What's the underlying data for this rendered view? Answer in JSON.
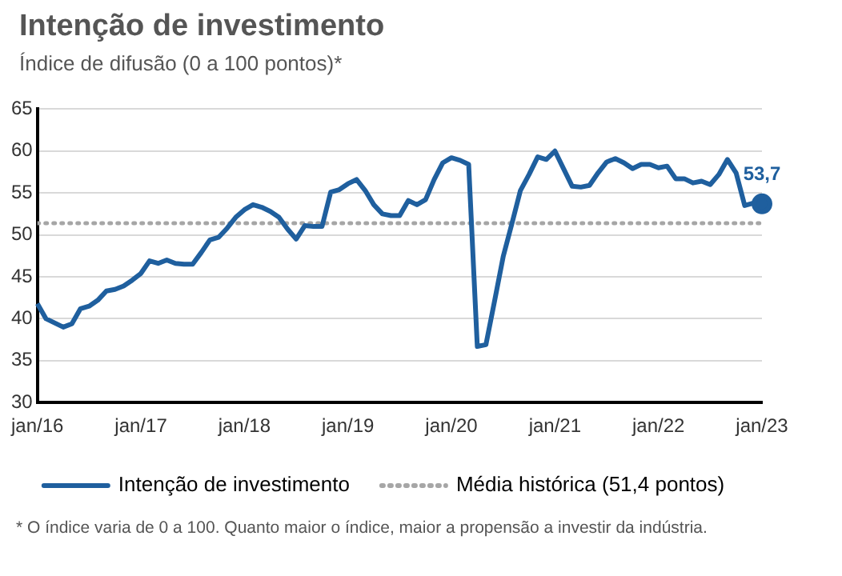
{
  "chart_data": {
    "type": "line",
    "title": "Intenção de investimento",
    "subtitle": "Índice de difusão (0 a 100 pontos)*",
    "x": [
      "2016-01",
      "2016-02",
      "2016-03",
      "2016-04",
      "2016-05",
      "2016-06",
      "2016-07",
      "2016-08",
      "2016-09",
      "2016-10",
      "2016-11",
      "2016-12",
      "2017-01",
      "2017-02",
      "2017-03",
      "2017-04",
      "2017-05",
      "2017-06",
      "2017-07",
      "2017-08",
      "2017-09",
      "2017-10",
      "2017-11",
      "2017-12",
      "2018-01",
      "2018-02",
      "2018-03",
      "2018-04",
      "2018-05",
      "2018-06",
      "2018-07",
      "2018-08",
      "2018-09",
      "2018-10",
      "2018-11",
      "2018-12",
      "2019-01",
      "2019-02",
      "2019-03",
      "2019-04",
      "2019-05",
      "2019-06",
      "2019-07",
      "2019-08",
      "2019-09",
      "2019-10",
      "2019-11",
      "2019-12",
      "2020-01",
      "2020-02",
      "2020-03",
      "2020-04",
      "2020-05",
      "2020-06",
      "2020-07",
      "2020-08",
      "2020-09",
      "2020-10",
      "2020-11",
      "2020-12",
      "2021-01",
      "2021-02",
      "2021-03",
      "2021-04",
      "2021-05",
      "2021-06",
      "2021-07",
      "2021-08",
      "2021-09",
      "2021-10",
      "2021-11",
      "2021-12",
      "2022-01",
      "2022-02",
      "2022-03",
      "2022-04",
      "2022-05",
      "2022-06",
      "2022-07",
      "2022-08",
      "2022-09",
      "2022-10",
      "2022-11",
      "2022-12",
      "2023-01"
    ],
    "series": [
      {
        "name": "Intenção de investimento",
        "color": "#1f5f9e",
        "values": [
          41.8,
          40.0,
          39.5,
          39.0,
          39.4,
          41.2,
          41.5,
          42.2,
          43.3,
          43.5,
          43.9,
          44.6,
          45.4,
          46.9,
          46.6,
          47.0,
          46.6,
          46.5,
          46.5,
          47.9,
          49.4,
          49.7,
          50.8,
          52.1,
          53.0,
          53.6,
          53.3,
          52.8,
          52.1,
          50.7,
          49.5,
          51.1,
          51.0,
          51.0,
          55.1,
          55.4,
          56.1,
          56.6,
          55.3,
          53.6,
          52.5,
          52.3,
          52.3,
          54.1,
          53.6,
          54.2,
          56.6,
          58.6,
          59.2,
          58.9,
          58.4,
          36.7,
          36.9,
          42.1,
          47.4,
          51.3,
          55.3,
          57.2,
          59.3,
          59.0,
          60.0,
          57.9,
          55.8,
          55.7,
          55.9,
          57.4,
          58.7,
          59.1,
          58.6,
          57.9,
          58.4,
          58.4,
          58.0,
          58.2,
          56.7,
          56.7,
          56.2,
          56.4,
          56.0,
          57.2,
          59.0,
          57.4,
          53.5,
          53.8,
          53.7
        ],
        "value_labels": [
          null,
          null,
          null,
          null,
          null,
          null,
          null,
          null,
          null,
          null,
          null,
          null,
          null,
          null,
          null,
          null,
          null,
          null,
          null,
          null,
          null,
          null,
          null,
          null,
          null,
          null,
          null,
          null,
          null,
          null,
          null,
          null,
          null,
          null,
          null,
          null,
          null,
          null,
          null,
          null,
          null,
          null,
          null,
          null,
          null,
          null,
          null,
          null,
          null,
          null,
          null,
          null,
          null,
          null,
          null,
          null,
          null,
          null,
          null,
          null,
          null,
          null,
          null,
          null,
          null,
          null,
          null,
          null,
          null,
          null,
          null,
          null,
          null,
          null,
          null,
          null,
          null,
          null,
          null,
          null,
          null,
          null,
          null,
          null,
          "53,7"
        ]
      }
    ],
    "ref_lines": [
      {
        "axis": "y",
        "value": 51.4,
        "label": "Média histórica (51,4 pontos)",
        "color": "#a6a6a6",
        "line_style": "dotted"
      }
    ],
    "xlim": [
      "2016-01",
      "2023-01"
    ],
    "xticks": [
      {
        "value": "2016-01",
        "label": "jan/16"
      },
      {
        "value": "2017-01",
        "label": "jan/17"
      },
      {
        "value": "2018-01",
        "label": "jan/18"
      },
      {
        "value": "2019-01",
        "label": "jan/19"
      },
      {
        "value": "2020-01",
        "label": "jan/20"
      },
      {
        "value": "2021-01",
        "label": "jan/21"
      },
      {
        "value": "2022-01",
        "label": "jan/22"
      },
      {
        "value": "2023-01",
        "label": "jan/23"
      }
    ],
    "ylim": [
      30,
      65
    ],
    "yticks": [
      30,
      35,
      40,
      45,
      50,
      55,
      60,
      65
    ],
    "grid": "y",
    "legend": "bottom",
    "line_style": "solid",
    "annotations": [
      "* O índice varia de 0 a 100. Quanto maior o índice, maior a propensão a investir da indústria."
    ]
  }
}
